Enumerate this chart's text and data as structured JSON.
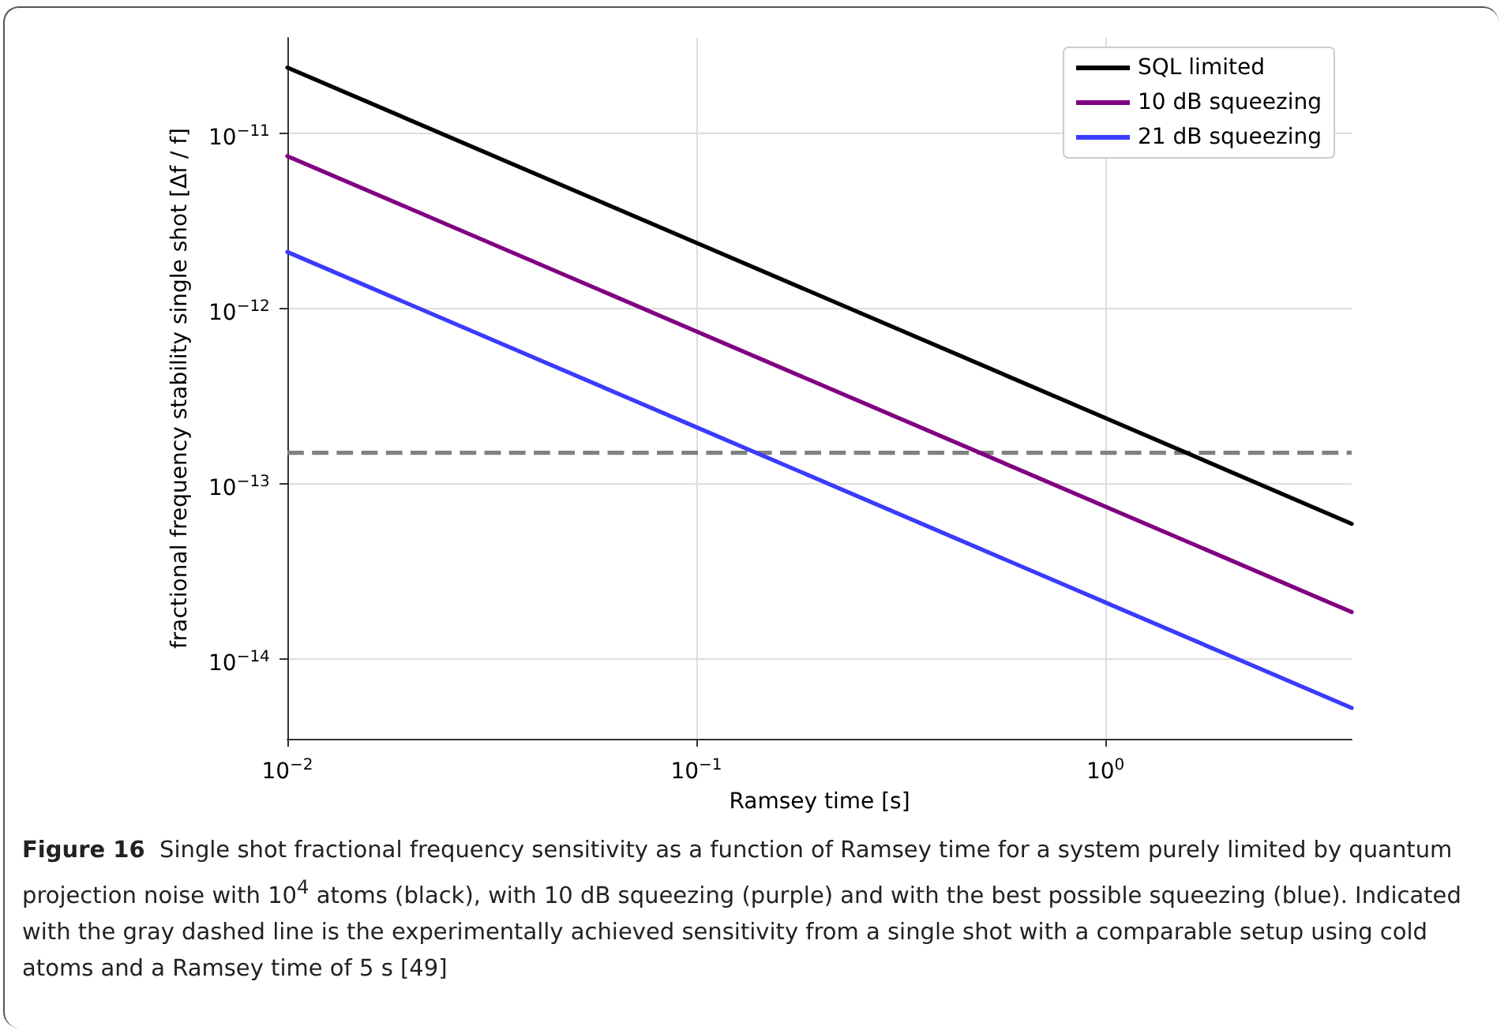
{
  "chart_data": {
    "type": "line",
    "xlabel": "Ramsey time [s]",
    "ylabel": "fractional frequency stability single shot [Δf / f]",
    "x": [
      0.01,
      0.1,
      1,
      4
    ],
    "series": [
      {
        "name": "SQL limited",
        "color": "#000000",
        "values": [
          2.37e-11,
          2.37e-12,
          2.37e-13,
          5.9e-14
        ]
      },
      {
        "name": "10 dB squeezing",
        "color": "#800080",
        "values": [
          7.4e-12,
          7.4e-13,
          7.4e-14,
          1.85e-14
        ]
      },
      {
        "name": "21 dB squeezing",
        "color": "#3b3bff",
        "values": [
          2.1e-12,
          2.1e-13,
          2.1e-14,
          5.25e-15
        ]
      }
    ],
    "log": "xy",
    "xlim": [
      0.01,
      4
    ],
    "ylim": [
      3.5e-15,
      3.5e-11
    ],
    "xticks": [
      {
        "value": 0.01,
        "label": "10$^{−2}$"
      },
      {
        "value": 0.1,
        "label": "10$^{−1}$"
      },
      {
        "value": 1,
        "label": "10$^{0}$"
      }
    ],
    "yticks": [
      {
        "value": 1e-14,
        "label": "10$^{−14}$"
      },
      {
        "value": 1e-13,
        "label": "10$^{−13}$"
      },
      {
        "value": 1e-12,
        "label": "10$^{−12}$"
      },
      {
        "value": 1e-11,
        "label": "10$^{−11}$"
      }
    ],
    "ref_lines": [
      {
        "axis": "y",
        "value": 1.5e-13,
        "label": null,
        "color": "#808080",
        "line_style": "dashed"
      }
    ],
    "grid": true,
    "legend": "top right",
    "marker": "none",
    "line_style": "solid",
    "annotations": [
      "Figure 16",
      "Single shot fractional frequency sensitivity as a function of Ramsey time for a system purely limited by quantum projection noise with 10$^{4}$ atoms (black), with 10 dB squeezing (purple) and with the best possible squeezing (blue). Indicated with the gray dashed line is the experimentally achieved sensitivity from a single shot with a comparable setup using cold atoms and a Ramsey time of 5 s [49]"
    ]
  }
}
